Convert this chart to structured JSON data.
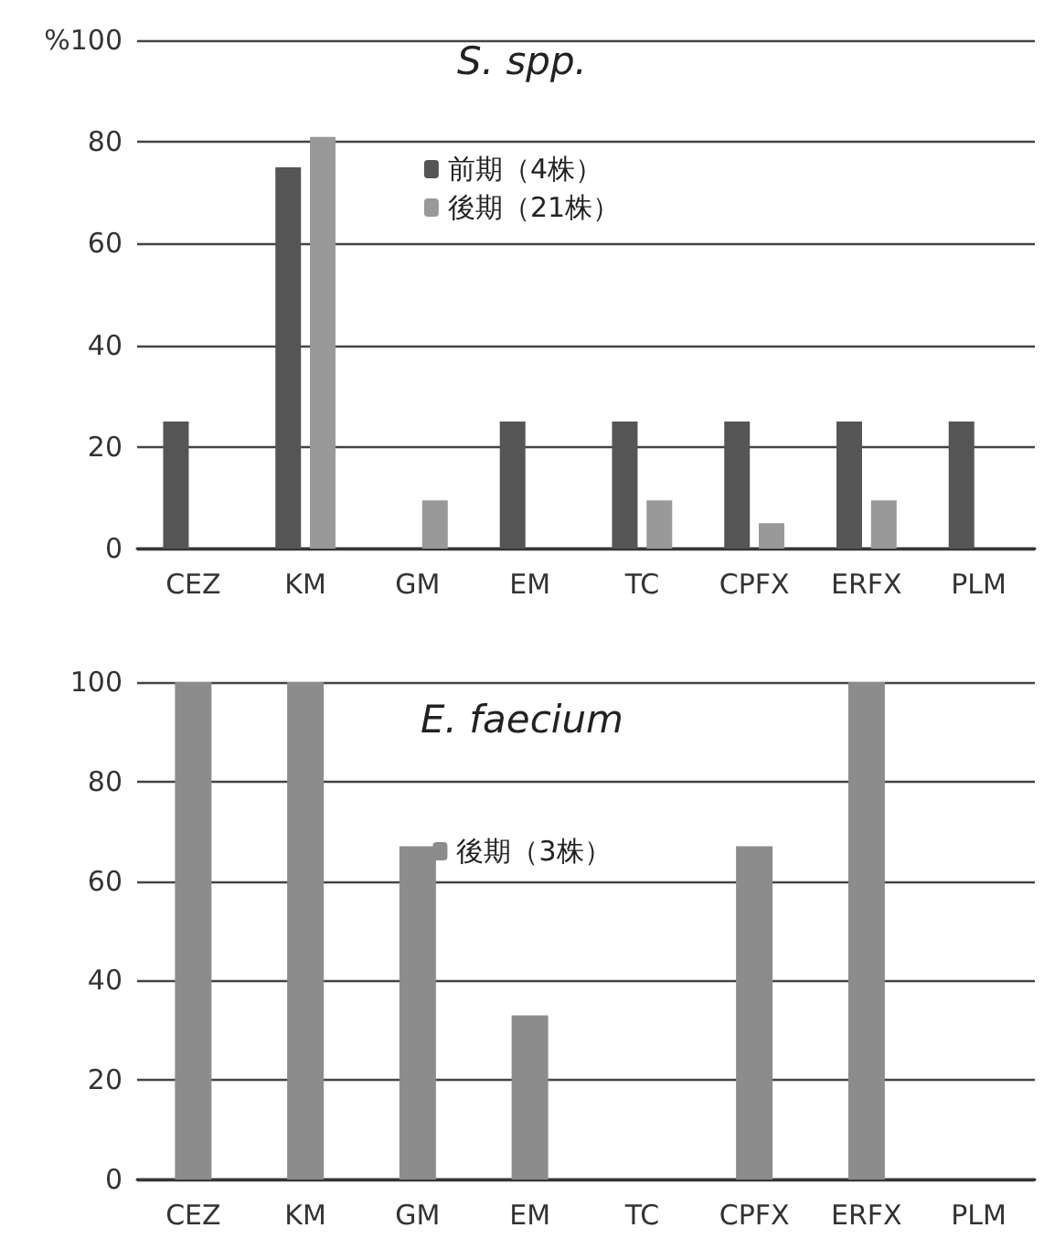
{
  "chart_data": [
    {
      "type": "bar",
      "title": "S. spp.",
      "categories": [
        "CEZ",
        "KM",
        "GM",
        "EM",
        "TC",
        "CPFX",
        "ERFX",
        "PLM"
      ],
      "series": [
        {
          "name": "前期（4株）",
          "color": "#555555",
          "values": [
            25,
            75,
            0,
            25,
            25,
            25,
            25,
            25
          ]
        },
        {
          "name": "後期（21株）",
          "color": "#999999",
          "values": [
            0,
            81,
            9.5,
            0,
            9.5,
            5,
            9.5,
            0
          ]
        }
      ],
      "ylim": [
        0,
        100
      ],
      "yticks": [
        0,
        20,
        40,
        60,
        80,
        {
          "value": 100,
          "label": "%100"
        }
      ],
      "grid": "y",
      "legend": "top"
    },
    {
      "type": "bar",
      "title": "E. faecium",
      "categories": [
        "CEZ",
        "KM",
        "GM",
        "EM",
        "TC",
        "CPFX",
        "ERFX",
        "PLM"
      ],
      "series": [
        {
          "name": "後期（3株）",
          "color": "#8c8c8c",
          "values": [
            100,
            100,
            67,
            33,
            0,
            67,
            100,
            0
          ]
        }
      ],
      "ylim": [
        0,
        100
      ],
      "yticks": [
        0,
        20,
        40,
        60,
        80,
        100
      ],
      "grid": "y",
      "legend": "top"
    }
  ]
}
